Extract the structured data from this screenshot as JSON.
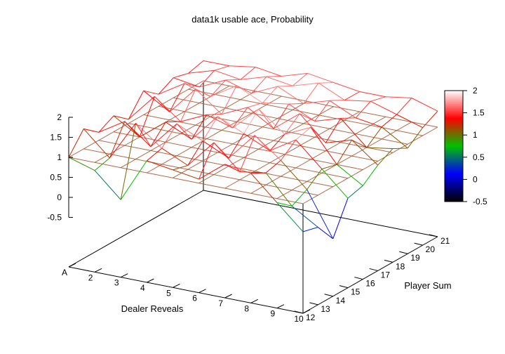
{
  "chart_data": {
    "type": "surface",
    "title": "data1k usable ace, Probability",
    "xlabel": "Dealer Reveals",
    "ylabel": "Player Sum",
    "x_ticks": [
      "A",
      "2",
      "3",
      "4",
      "5",
      "6",
      "7",
      "8",
      "9",
      "10"
    ],
    "y_ticks": [
      "12",
      "13",
      "14",
      "15",
      "16",
      "17",
      "18",
      "19",
      "20",
      "21"
    ],
    "z_ticks": [
      "-0.5",
      "0",
      "0.5",
      "1",
      "1.5",
      "2"
    ],
    "zlim": [
      -0.5,
      2
    ],
    "colorbar_ticks": [
      "-0.5",
      "0",
      "0.5",
      "1",
      "1.5",
      "2"
    ],
    "colorbar_range": [
      -0.5,
      2
    ],
    "colors": {
      "base_plane_mesh": "#a0522d",
      "axes": "#000000",
      "palette": [
        "#000000",
        "#0000ff",
        "#00c000",
        "#ff0000",
        "#ffffff"
      ]
    },
    "grid": true,
    "colorbar_placement": "right",
    "x": [
      1,
      2,
      3,
      4,
      5,
      6,
      7,
      8,
      9,
      10
    ],
    "y": [
      12,
      13,
      14,
      15,
      16,
      17,
      18,
      19,
      20,
      21
    ],
    "z": [
      [
        1.0,
        0.8,
        0.2,
        1.3,
        1.2,
        1.1,
        1.6,
        1.5,
        0.9,
        0.3
      ],
      [
        1.5,
        0.9,
        1.9,
        1.4,
        1.1,
        1.8,
        1.2,
        1.3,
        0.6,
        0.2
      ],
      [
        1.2,
        1.6,
        1.1,
        1.8,
        1.5,
        1.2,
        1.9,
        1.4,
        0.8,
        -0.3
      ],
      [
        1.4,
        1.0,
        1.5,
        1.2,
        1.9,
        1.6,
        1.3,
        1.7,
        1.1,
        0.5
      ],
      [
        1.1,
        1.8,
        1.3,
        1.6,
        1.4,
        2.0,
        1.5,
        1.8,
        1.0,
        0.6
      ],
      [
        1.6,
        1.2,
        1.9,
        1.4,
        1.7,
        1.3,
        1.8,
        1.2,
        1.4,
        0.9
      ],
      [
        1.3,
        1.7,
        1.5,
        1.9,
        1.6,
        1.7,
        1.4,
        1.6,
        1.0,
        1.1
      ],
      [
        1.5,
        1.4,
        1.7,
        1.5,
        1.8,
        1.5,
        1.7,
        1.4,
        1.3,
        0.9
      ],
      [
        1.4,
        1.6,
        1.5,
        1.7,
        1.6,
        1.8,
        1.5,
        1.6,
        1.4,
        1.2
      ],
      [
        1.5,
        1.5,
        1.6,
        1.5,
        1.7,
        1.6,
        1.5,
        1.5,
        1.6,
        1.4
      ]
    ]
  }
}
